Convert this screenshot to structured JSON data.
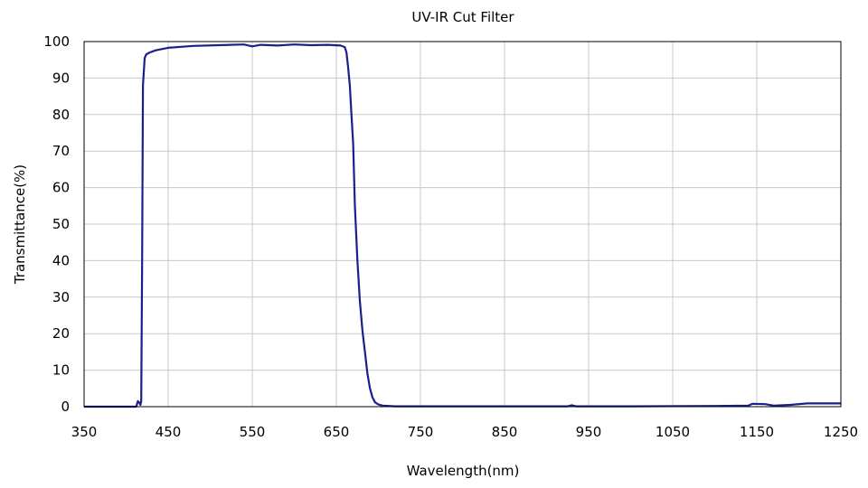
{
  "colors": {
    "line": "#1a1f8c",
    "grid": "#c8c8c8",
    "axis": "#000000",
    "background": "#ffffff"
  },
  "chart_data": {
    "type": "line",
    "title": "UV-IR Cut Filter",
    "xlabel": "Wavelength(nm)",
    "ylabel": "Transmittance(%)",
    "xlim": [
      350,
      1250
    ],
    "ylim": [
      0,
      100
    ],
    "xticks": [
      350,
      450,
      550,
      650,
      750,
      850,
      950,
      1050,
      1150,
      1250
    ],
    "yticks": [
      0,
      10,
      20,
      30,
      40,
      50,
      60,
      70,
      80,
      90,
      100
    ],
    "grid": true,
    "legend": "none",
    "series": [
      {
        "x": [
          350,
          400,
          412,
          414,
          416,
          417,
          418,
          419,
          420,
          422,
          424,
          428,
          435,
          450,
          480,
          510,
          540,
          550,
          560,
          580,
          600,
          620,
          640,
          655,
          660,
          662,
          664,
          666,
          668,
          670,
          672,
          675,
          678,
          681,
          684,
          687,
          690,
          693,
          696,
          700,
          705,
          720,
          800,
          900,
          925,
          930,
          935,
          1000,
          1100,
          1140,
          1145,
          1160,
          1170,
          1190,
          1210,
          1250
        ],
        "values": [
          0,
          0,
          0,
          1.5,
          1,
          0.5,
          1.5,
          40,
          88,
          95.5,
          96.5,
          97,
          97.6,
          98.3,
          98.8,
          99,
          99.2,
          98.7,
          99.1,
          98.9,
          99.2,
          99,
          99.1,
          98.9,
          98.5,
          97,
          93,
          88,
          80,
          72,
          55,
          40,
          29,
          21,
          15,
          9,
          5,
          2.5,
          1.2,
          0.6,
          0.3,
          0.1,
          0.1,
          0.1,
          0.1,
          0.4,
          0.1,
          0.1,
          0.2,
          0.3,
          0.8,
          0.7,
          0.3,
          0.5,
          0.9,
          0.9
        ]
      }
    ]
  }
}
